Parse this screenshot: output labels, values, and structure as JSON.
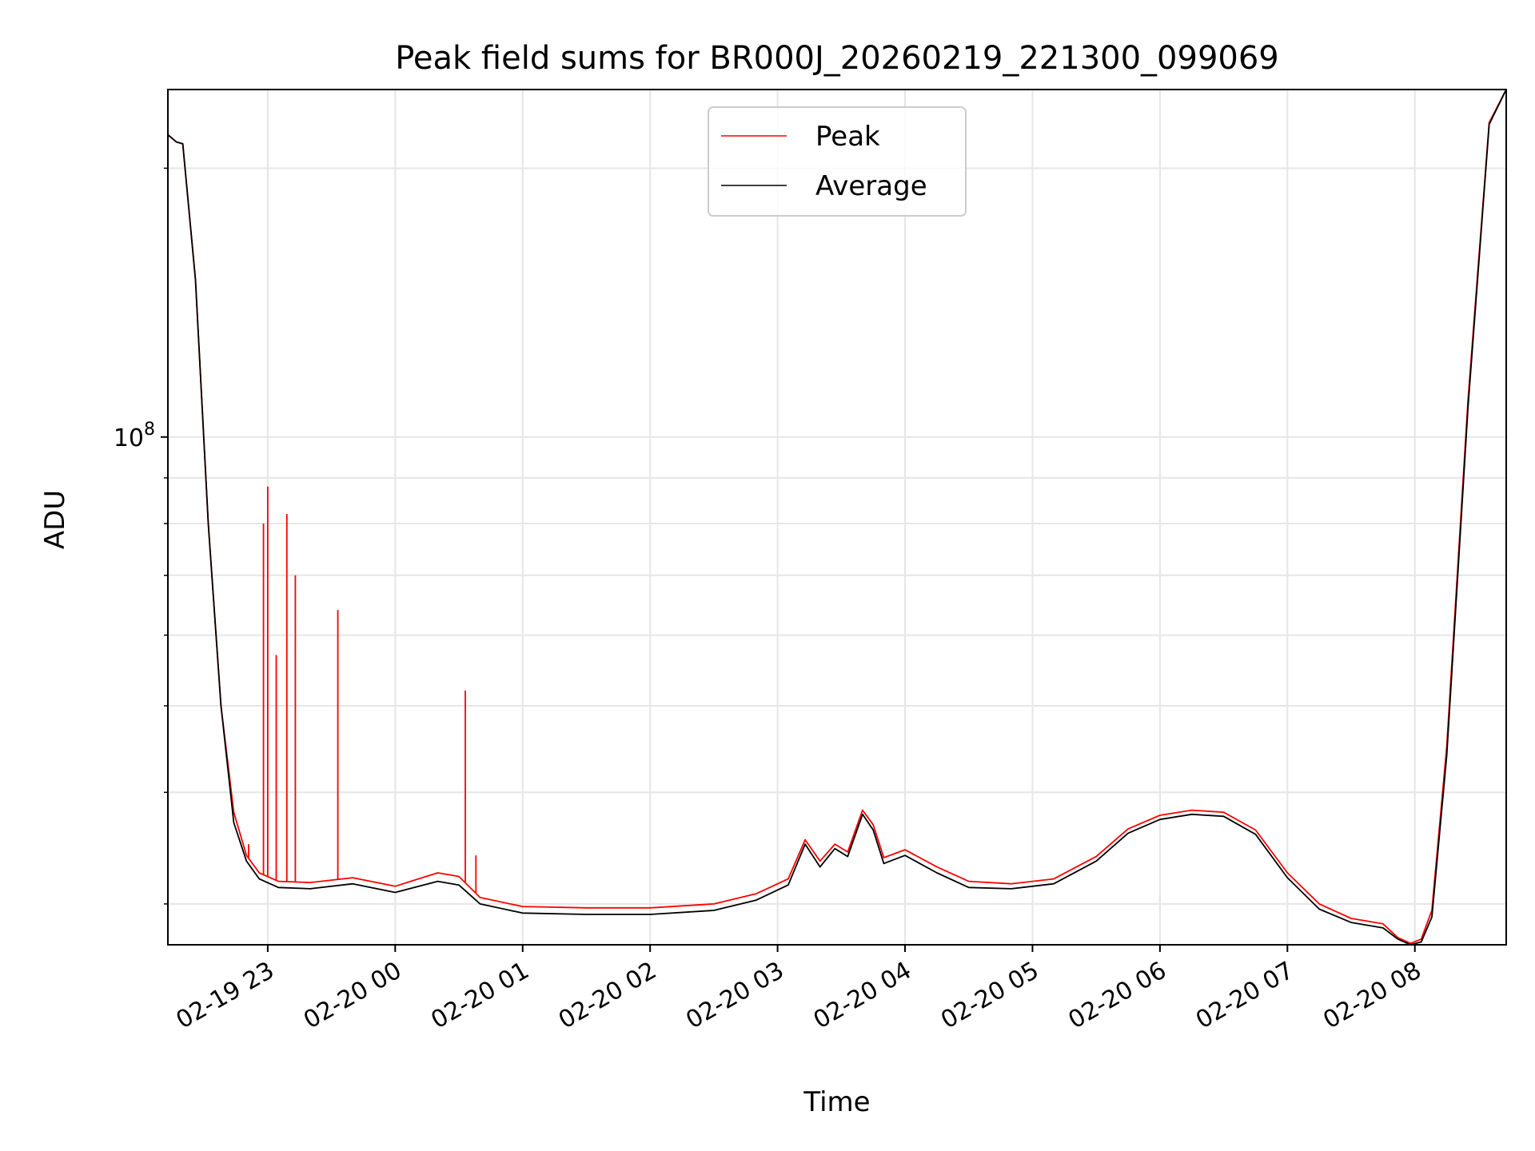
{
  "chart_data": {
    "type": "line",
    "title": "Peak field sums for BR000J_20260219_221300_099069",
    "xlabel": "Time",
    "ylabel": "ADU",
    "yscale": "log",
    "grid": true,
    "legend_placement": "upper-center",
    "xlim": [
      "2026-02-19 22:13",
      "2026-02-20 08:43"
    ],
    "ylim": [
      27000000,
      245000000
    ],
    "x_ticks": [
      "02-19 23",
      "02-20 00",
      "02-20 01",
      "02-20 02",
      "02-20 03",
      "02-20 04",
      "02-20 05",
      "02-20 06",
      "02-20 07",
      "02-20 08"
    ],
    "y_ticks": [
      {
        "value": 100000000,
        "base": "10",
        "exp": "8"
      }
    ],
    "colors": {
      "peak": "#ff0000",
      "average": "#000000"
    },
    "series": [
      {
        "name": "Peak",
        "color": "#ff0000",
        "x": [
          "2026-02-19 22:13",
          "2026-02-19 22:17",
          "2026-02-19 22:20",
          "2026-02-19 22:26",
          "2026-02-19 22:32",
          "2026-02-19 22:38",
          "2026-02-19 22:44",
          "2026-02-19 22:50",
          "2026-02-19 22:56",
          "2026-02-19 23:05",
          "2026-02-19 23:20",
          "2026-02-19 23:40",
          "2026-02-20 00:00",
          "2026-02-20 00:20",
          "2026-02-20 00:30",
          "2026-02-20 00:40",
          "2026-02-20 01:00",
          "2026-02-20 01:30",
          "2026-02-20 02:00",
          "2026-02-20 02:30",
          "2026-02-20 02:50",
          "2026-02-20 03:05",
          "2026-02-20 03:13",
          "2026-02-20 03:20",
          "2026-02-20 03:27",
          "2026-02-20 03:33",
          "2026-02-20 03:40",
          "2026-02-20 03:45",
          "2026-02-20 03:50",
          "2026-02-20 04:00",
          "2026-02-20 04:15",
          "2026-02-20 04:30",
          "2026-02-20 04:50",
          "2026-02-20 05:10",
          "2026-02-20 05:30",
          "2026-02-20 05:45",
          "2026-02-20 06:00",
          "2026-02-20 06:15",
          "2026-02-20 06:30",
          "2026-02-20 06:45",
          "2026-02-20 07:00",
          "2026-02-20 07:15",
          "2026-02-20 07:30",
          "2026-02-20 07:45",
          "2026-02-20 07:52",
          "2026-02-20 07:58",
          "2026-02-20 08:03",
          "2026-02-20 08:08",
          "2026-02-20 08:15",
          "2026-02-20 08:25",
          "2026-02-20 08:35",
          "2026-02-20 08:43"
        ],
        "y": [
          218000000,
          214000000,
          213000000,
          150000000,
          80000000,
          50000000,
          38000000,
          34000000,
          32500000,
          31800000,
          31700000,
          32100000,
          31400000,
          32500000,
          32200000,
          30500000,
          29800000,
          29700000,
          29700000,
          30000000,
          30800000,
          32000000,
          35400000,
          33500000,
          35000000,
          34300000,
          38200000,
          36800000,
          33800000,
          34500000,
          33000000,
          31800000,
          31600000,
          32000000,
          33900000,
          36400000,
          37700000,
          38200000,
          38000000,
          36300000,
          32500000,
          30000000,
          28900000,
          28500000,
          27500000,
          27100000,
          27400000,
          29500000,
          45000000,
          110000000,
          225000000,
          245000000
        ],
        "spikes": [
          {
            "x": "2026-02-19 22:51",
            "y": 35000000
          },
          {
            "x": "2026-02-19 22:58",
            "y": 80000000
          },
          {
            "x": "2026-02-19 23:00",
            "y": 88000000
          },
          {
            "x": "2026-02-19 23:04",
            "y": 57000000
          },
          {
            "x": "2026-02-19 23:09",
            "y": 82000000
          },
          {
            "x": "2026-02-19 23:13",
            "y": 70000000
          },
          {
            "x": "2026-02-19 23:33",
            "y": 64000000
          },
          {
            "x": "2026-02-20 00:33",
            "y": 52000000
          },
          {
            "x": "2026-02-20 00:38",
            "y": 34000000
          }
        ]
      },
      {
        "name": "Average",
        "color": "#000000",
        "x": [
          "2026-02-19 22:13",
          "2026-02-19 22:17",
          "2026-02-19 22:20",
          "2026-02-19 22:26",
          "2026-02-19 22:32",
          "2026-02-19 22:38",
          "2026-02-19 22:44",
          "2026-02-19 22:50",
          "2026-02-19 22:56",
          "2026-02-19 23:05",
          "2026-02-19 23:20",
          "2026-02-19 23:40",
          "2026-02-20 00:00",
          "2026-02-20 00:20",
          "2026-02-20 00:30",
          "2026-02-20 00:40",
          "2026-02-20 01:00",
          "2026-02-20 01:30",
          "2026-02-20 02:00",
          "2026-02-20 02:30",
          "2026-02-20 02:50",
          "2026-02-20 03:05",
          "2026-02-20 03:13",
          "2026-02-20 03:20",
          "2026-02-20 03:27",
          "2026-02-20 03:33",
          "2026-02-20 03:40",
          "2026-02-20 03:45",
          "2026-02-20 03:50",
          "2026-02-20 04:00",
          "2026-02-20 04:15",
          "2026-02-20 04:30",
          "2026-02-20 04:50",
          "2026-02-20 05:10",
          "2026-02-20 05:30",
          "2026-02-20 05:45",
          "2026-02-20 06:00",
          "2026-02-20 06:15",
          "2026-02-20 06:30",
          "2026-02-20 06:45",
          "2026-02-20 07:00",
          "2026-02-20 07:15",
          "2026-02-20 07:30",
          "2026-02-20 07:45",
          "2026-02-20 07:52",
          "2026-02-20 07:58",
          "2026-02-20 08:03",
          "2026-02-20 08:08",
          "2026-02-20 08:15",
          "2026-02-20 08:25",
          "2026-02-20 08:35",
          "2026-02-20 08:43"
        ],
        "y": [
          218000000,
          214000000,
          213000000,
          150000000,
          80000000,
          50000000,
          37000000,
          33500000,
          32000000,
          31300000,
          31200000,
          31600000,
          30900000,
          31800000,
          31500000,
          30000000,
          29300000,
          29200000,
          29200000,
          29500000,
          30300000,
          31500000,
          35000000,
          33000000,
          34600000,
          33900000,
          37800000,
          36300000,
          33300000,
          34000000,
          32500000,
          31300000,
          31200000,
          31600000,
          33500000,
          36000000,
          37300000,
          37800000,
          37600000,
          35900000,
          32100000,
          29600000,
          28600000,
          28200000,
          27400000,
          27000000,
          27200000,
          29000000,
          44000000,
          108000000,
          224000000,
          245000000
        ]
      }
    ]
  }
}
